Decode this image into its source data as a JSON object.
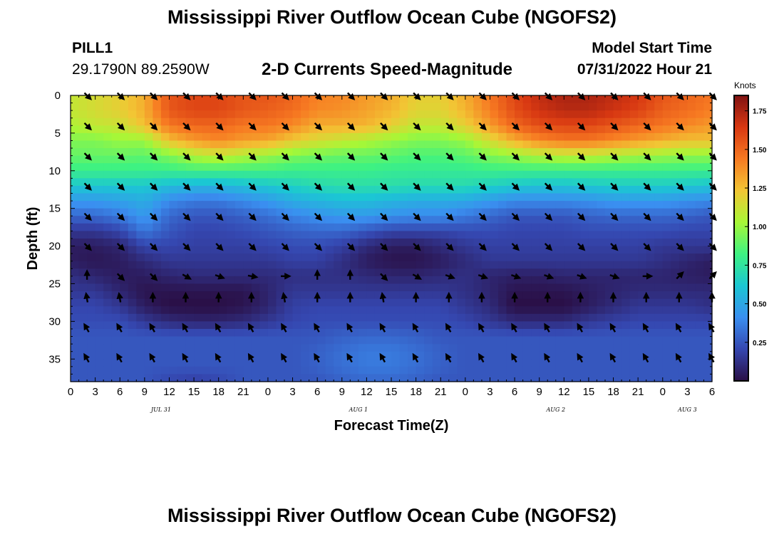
{
  "header": {
    "title": "Mississippi River Outflow Ocean Cube (NGOFS2)",
    "station": "PILL1",
    "coords": "29.1790N  89.2590W",
    "subtitle": "2-D Currents Speed-Magnitude",
    "model_start_label": "Model Start Time",
    "model_start_value": "07/31/2022 Hour 21"
  },
  "footer": {
    "title": "Mississippi River Outflow Ocean Cube (NGOFS2)"
  },
  "chart_data": {
    "type": "heatmap",
    "title": "2-D Currents Speed-Magnitude",
    "xlabel": "Forecast Time(Z)",
    "ylabel": "Depth (ft)",
    "x_unit": "hours since 07/31/2022 00Z",
    "xlim": [
      0,
      78
    ],
    "ylim": [
      0,
      38
    ],
    "y_inverted": true,
    "x_tick_values": [
      0,
      3,
      6,
      9,
      12,
      15,
      18,
      21,
      24,
      27,
      30,
      33,
      36,
      39,
      42,
      45,
      48,
      51,
      54,
      57,
      60,
      63,
      66,
      69,
      72,
      75,
      78
    ],
    "x_tick_labels": [
      "0",
      "3",
      "6",
      "9",
      "12",
      "15",
      "18",
      "21",
      "0",
      "3",
      "6",
      "9",
      "12",
      "15",
      "18",
      "21",
      "0",
      "3",
      "6",
      "9",
      "12",
      "15",
      "18",
      "21",
      "0",
      "3",
      "6"
    ],
    "date_labels": [
      {
        "label": "JUL 31",
        "x": 11
      },
      {
        "label": "AUG 1",
        "x": 35
      },
      {
        "label": "AUG 2",
        "x": 59
      },
      {
        "label": "AUG 3",
        "x": 75
      }
    ],
    "y_ticks": [
      0,
      5,
      10,
      15,
      20,
      25,
      30,
      35
    ],
    "colorbar": {
      "units": "Knots",
      "min": 0,
      "max": 1.85,
      "ticks": [
        0.25,
        0.5,
        0.75,
        1.0,
        1.25,
        1.5,
        1.75
      ],
      "tick_labels": [
        "0.25",
        "0.50",
        "0.75",
        "1.00",
        "1.25",
        "1.50",
        "1.75"
      ],
      "colorscale": [
        "#2a0f45",
        "#3547b0",
        "#3a8ff0",
        "#1bc7d3",
        "#3ef282",
        "#a8f736",
        "#f2c634",
        "#f77a22",
        "#d83812",
        "#801212"
      ]
    },
    "speed_knots": {
      "x": [
        0,
        3,
        6,
        9,
        12,
        15,
        18,
        21,
        24,
        27,
        30,
        33,
        36,
        39,
        42,
        45,
        48,
        51,
        54,
        57,
        60,
        63,
        66,
        69,
        72,
        75,
        78
      ],
      "depth": [
        0,
        2,
        4,
        6,
        8,
        10,
        12,
        14,
        16,
        18,
        20,
        22,
        24,
        26,
        28,
        30,
        32,
        34,
        36,
        38
      ],
      "z": [
        [
          1.1,
          1.15,
          1.2,
          1.3,
          1.55,
          1.6,
          1.6,
          1.55,
          1.55,
          1.5,
          1.42,
          1.4,
          1.35,
          1.3,
          1.2,
          1.2,
          1.3,
          1.45,
          1.6,
          1.7,
          1.75,
          1.75,
          1.7,
          1.65,
          1.55,
          1.5,
          1.45
        ],
        [
          1.1,
          1.15,
          1.2,
          1.3,
          1.55,
          1.6,
          1.6,
          1.55,
          1.52,
          1.48,
          1.4,
          1.38,
          1.33,
          1.28,
          1.18,
          1.18,
          1.28,
          1.43,
          1.58,
          1.67,
          1.72,
          1.72,
          1.67,
          1.62,
          1.52,
          1.48,
          1.43
        ],
        [
          1.05,
          1.1,
          1.12,
          1.25,
          1.45,
          1.5,
          1.5,
          1.45,
          1.45,
          1.4,
          1.3,
          1.3,
          1.28,
          1.2,
          1.1,
          1.1,
          1.2,
          1.35,
          1.5,
          1.58,
          1.6,
          1.6,
          1.55,
          1.5,
          1.45,
          1.4,
          1.35
        ],
        [
          0.95,
          0.95,
          1.0,
          1.0,
          1.25,
          1.35,
          1.4,
          1.35,
          1.32,
          1.22,
          1.15,
          1.1,
          1.05,
          1.0,
          0.95,
          0.95,
          1.0,
          1.15,
          1.3,
          1.4,
          1.45,
          1.45,
          1.4,
          1.35,
          1.3,
          1.25,
          1.25
        ],
        [
          0.9,
          0.9,
          0.9,
          0.88,
          0.95,
          1.05,
          1.1,
          1.05,
          1.0,
          0.95,
          0.92,
          0.9,
          0.9,
          0.88,
          0.85,
          0.85,
          0.88,
          0.95,
          1.0,
          1.05,
          1.08,
          1.08,
          1.05,
          1.02,
          1.0,
          0.98,
          0.98
        ],
        [
          0.8,
          0.8,
          0.8,
          0.8,
          0.8,
          0.82,
          0.82,
          0.82,
          0.82,
          0.8,
          0.8,
          0.8,
          0.8,
          0.78,
          0.78,
          0.78,
          0.78,
          0.8,
          0.8,
          0.8,
          0.8,
          0.8,
          0.8,
          0.8,
          0.8,
          0.8,
          0.8
        ],
        [
          0.62,
          0.62,
          0.62,
          0.62,
          0.58,
          0.55,
          0.55,
          0.58,
          0.62,
          0.66,
          0.7,
          0.72,
          0.72,
          0.72,
          0.7,
          0.7,
          0.7,
          0.66,
          0.62,
          0.6,
          0.6,
          0.62,
          0.64,
          0.64,
          0.64,
          0.62,
          0.6
        ],
        [
          0.45,
          0.45,
          0.48,
          0.52,
          0.4,
          0.35,
          0.35,
          0.4,
          0.45,
          0.52,
          0.55,
          0.58,
          0.58,
          0.55,
          0.52,
          0.52,
          0.5,
          0.45,
          0.4,
          0.4,
          0.4,
          0.42,
          0.45,
          0.45,
          0.45,
          0.42,
          0.4
        ],
        [
          0.3,
          0.3,
          0.35,
          0.45,
          0.3,
          0.25,
          0.25,
          0.28,
          0.32,
          0.38,
          0.42,
          0.45,
          0.45,
          0.42,
          0.4,
          0.4,
          0.35,
          0.3,
          0.25,
          0.25,
          0.25,
          0.28,
          0.3,
          0.3,
          0.3,
          0.28,
          0.25
        ],
        [
          0.15,
          0.15,
          0.2,
          0.35,
          0.25,
          0.2,
          0.2,
          0.22,
          0.25,
          0.28,
          0.3,
          0.3,
          0.25,
          0.2,
          0.2,
          0.2,
          0.22,
          0.22,
          0.2,
          0.2,
          0.2,
          0.22,
          0.22,
          0.22,
          0.22,
          0.2,
          0.2
        ],
        [
          0.05,
          0.05,
          0.08,
          0.2,
          0.2,
          0.18,
          0.18,
          0.18,
          0.2,
          0.22,
          0.22,
          0.18,
          0.1,
          0.05,
          0.05,
          0.1,
          0.15,
          0.18,
          0.18,
          0.18,
          0.18,
          0.18,
          0.18,
          0.18,
          0.15,
          0.15,
          0.15
        ],
        [
          0.05,
          0.03,
          0.05,
          0.1,
          0.15,
          0.15,
          0.15,
          0.15,
          0.15,
          0.18,
          0.18,
          0.12,
          0.05,
          0.02,
          0.02,
          0.05,
          0.1,
          0.15,
          0.15,
          0.15,
          0.15,
          0.15,
          0.15,
          0.15,
          0.12,
          0.08,
          0.05
        ],
        [
          0.12,
          0.08,
          0.05,
          0.05,
          0.08,
          0.1,
          0.1,
          0.1,
          0.1,
          0.12,
          0.12,
          0.12,
          0.1,
          0.08,
          0.08,
          0.1,
          0.12,
          0.08,
          0.06,
          0.06,
          0.08,
          0.08,
          0.08,
          0.08,
          0.08,
          0.06,
          0.05
        ],
        [
          0.15,
          0.15,
          0.08,
          0.02,
          0.02,
          0.02,
          0.02,
          0.02,
          0.08,
          0.15,
          0.15,
          0.15,
          0.15,
          0.15,
          0.15,
          0.15,
          0.12,
          0.08,
          0.02,
          0.02,
          0.02,
          0.05,
          0.08,
          0.1,
          0.1,
          0.1,
          0.1
        ],
        [
          0.2,
          0.2,
          0.15,
          0.05,
          0.0,
          0.0,
          0.0,
          0.02,
          0.08,
          0.18,
          0.2,
          0.2,
          0.2,
          0.2,
          0.2,
          0.2,
          0.15,
          0.1,
          0.0,
          0.0,
          0.0,
          0.05,
          0.1,
          0.15,
          0.15,
          0.15,
          0.12
        ],
        [
          0.22,
          0.22,
          0.22,
          0.15,
          0.1,
          0.08,
          0.08,
          0.1,
          0.15,
          0.2,
          0.22,
          0.22,
          0.22,
          0.22,
          0.22,
          0.22,
          0.2,
          0.15,
          0.1,
          0.1,
          0.1,
          0.15,
          0.18,
          0.2,
          0.2,
          0.2,
          0.2
        ],
        [
          0.25,
          0.25,
          0.25,
          0.25,
          0.25,
          0.25,
          0.25,
          0.25,
          0.25,
          0.25,
          0.25,
          0.28,
          0.3,
          0.3,
          0.28,
          0.25,
          0.25,
          0.25,
          0.25,
          0.25,
          0.25,
          0.25,
          0.25,
          0.25,
          0.25,
          0.25,
          0.25
        ],
        [
          0.25,
          0.25,
          0.25,
          0.25,
          0.25,
          0.25,
          0.25,
          0.25,
          0.25,
          0.25,
          0.28,
          0.32,
          0.35,
          0.35,
          0.32,
          0.28,
          0.25,
          0.25,
          0.25,
          0.25,
          0.25,
          0.25,
          0.25,
          0.25,
          0.25,
          0.25,
          0.25
        ],
        [
          0.25,
          0.25,
          0.25,
          0.25,
          0.25,
          0.25,
          0.25,
          0.25,
          0.25,
          0.25,
          0.28,
          0.32,
          0.35,
          0.35,
          0.32,
          0.28,
          0.25,
          0.25,
          0.25,
          0.25,
          0.25,
          0.25,
          0.25,
          0.25,
          0.25,
          0.25,
          0.25
        ],
        [
          0.25,
          0.25,
          0.25,
          0.25,
          0.2,
          0.18,
          0.2,
          0.25,
          0.25,
          0.25,
          0.25,
          0.28,
          0.3,
          0.3,
          0.28,
          0.25,
          0.25,
          0.25,
          0.25,
          0.25,
          0.25,
          0.25,
          0.25,
          0.25,
          0.25,
          0.25,
          0.25
        ]
      ]
    },
    "current_vectors": {
      "x": [
        2,
        6,
        10,
        14,
        18,
        22,
        26,
        30,
        34,
        38,
        42,
        46,
        50,
        54,
        58,
        62,
        66,
        70,
        74,
        78
      ],
      "depth": [
        0,
        4,
        8,
        12,
        16,
        20,
        24,
        27,
        31,
        35
      ],
      "direction_deg": [
        [
          135,
          135,
          135,
          135,
          135,
          135,
          135,
          135,
          135,
          135,
          135,
          135,
          135,
          135,
          135,
          135,
          135,
          135,
          135,
          135
        ],
        [
          135,
          135,
          135,
          135,
          135,
          135,
          135,
          135,
          135,
          135,
          135,
          135,
          135,
          135,
          135,
          135,
          135,
          135,
          135,
          135
        ],
        [
          135,
          135,
          135,
          135,
          135,
          135,
          135,
          135,
          135,
          135,
          135,
          135,
          135,
          135,
          135,
          135,
          135,
          135,
          135,
          135
        ],
        [
          135,
          135,
          135,
          135,
          135,
          135,
          135,
          135,
          135,
          135,
          135,
          135,
          135,
          135,
          135,
          135,
          135,
          135,
          135,
          135
        ],
        [
          135,
          135,
          135,
          135,
          135,
          135,
          135,
          135,
          135,
          135,
          135,
          135,
          135,
          135,
          135,
          135,
          135,
          135,
          135,
          135
        ],
        [
          135,
          135,
          135,
          135,
          135,
          135,
          135,
          135,
          135,
          135,
          135,
          135,
          135,
          135,
          135,
          135,
          135,
          135,
          135,
          135
        ],
        [
          0,
          135,
          135,
          120,
          110,
          100,
          90,
          0,
          0,
          135,
          120,
          110,
          110,
          110,
          110,
          110,
          110,
          90,
          45,
          45
        ],
        [
          350,
          350,
          0,
          0,
          0,
          0,
          350,
          0,
          0,
          350,
          0,
          0,
          0,
          0,
          0,
          0,
          0,
          0,
          0,
          0
        ],
        [
          330,
          330,
          330,
          330,
          330,
          330,
          330,
          330,
          330,
          330,
          330,
          330,
          330,
          330,
          330,
          330,
          330,
          330,
          330,
          330
        ],
        [
          330,
          330,
          330,
          330,
          330,
          330,
          330,
          330,
          330,
          330,
          330,
          330,
          330,
          330,
          330,
          330,
          330,
          330,
          330,
          330
        ]
      ]
    }
  }
}
